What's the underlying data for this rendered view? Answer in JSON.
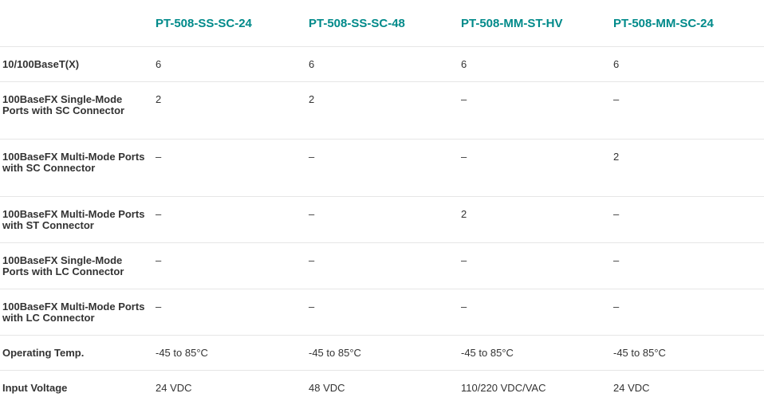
{
  "colors": {
    "header": "#008a8a",
    "text": "#333333",
    "divider": "#e6e6e6"
  },
  "headers": [
    "",
    "PT-508-SS-SC-24",
    "PT-508-SS-SC-48",
    "PT-508-MM-ST-HV",
    "PT-508-MM-SC-24"
  ],
  "rows": [
    {
      "label": "10/100BaseT(X)",
      "values": [
        "6",
        "6",
        "6",
        "6"
      ]
    },
    {
      "label": "100BaseFX Single-Mode Ports with SC Connector",
      "values": [
        "2",
        "2",
        "–",
        "–"
      ]
    },
    {
      "label": "100BaseFX Multi-Mode Ports with SC Connector",
      "values": [
        "–",
        "–",
        "–",
        "2"
      ]
    },
    {
      "label": "100BaseFX Multi-Mode Ports with ST Connector",
      "values": [
        "–",
        "–",
        "2",
        "–"
      ]
    },
    {
      "label": "100BaseFX Single-Mode Ports with LC Connector",
      "values": [
        "–",
        "–",
        "–",
        "–"
      ]
    },
    {
      "label": "100BaseFX Multi-Mode Ports with LC Connector",
      "values": [
        "–",
        "–",
        "–",
        "–"
      ]
    },
    {
      "label": "Operating Temp.",
      "values": [
        "-45 to 85°C",
        "-45 to 85°C",
        "-45 to 85°C",
        "-45 to 85°C"
      ]
    },
    {
      "label": "Input Voltage",
      "values": [
        "24 VDC",
        "48 VDC",
        "110/220 VDC/VAC",
        "24 VDC"
      ]
    }
  ]
}
